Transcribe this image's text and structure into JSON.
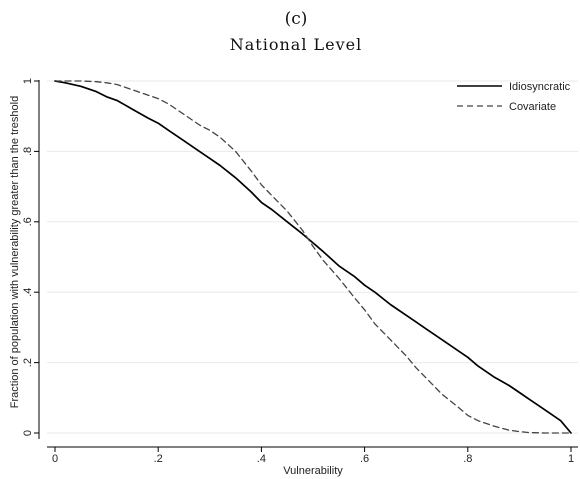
{
  "chart_data": {
    "type": "line",
    "panel_label": "(c)",
    "title": "National Level",
    "xlabel": "Vulnerability",
    "ylabel": "Fraction of population with vulnerability greater than the treshold",
    "xlim": [
      0,
      1
    ],
    "ylim": [
      0,
      1
    ],
    "x_ticks": [
      0,
      0.2,
      0.4,
      0.6,
      0.8,
      1
    ],
    "x_tick_labels": [
      "0",
      ".2",
      ".4",
      ".6",
      ".8",
      "1"
    ],
    "y_ticks": [
      0,
      0.2,
      0.4,
      0.6,
      0.8,
      1
    ],
    "y_tick_labels": [
      "0",
      ".2",
      ".4",
      ".6",
      ".8",
      "1"
    ],
    "grid": true,
    "legend_position": "top-right",
    "series": [
      {
        "name": "Idiosyncratic",
        "style": "solid",
        "color": "#000000",
        "x": [
          0,
          0.02,
          0.05,
          0.08,
          0.1,
          0.12,
          0.15,
          0.18,
          0.2,
          0.22,
          0.25,
          0.28,
          0.3,
          0.32,
          0.35,
          0.38,
          0.4,
          0.42,
          0.45,
          0.48,
          0.5,
          0.52,
          0.55,
          0.58,
          0.6,
          0.62,
          0.65,
          0.68,
          0.7,
          0.72,
          0.75,
          0.78,
          0.8,
          0.82,
          0.85,
          0.88,
          0.9,
          0.92,
          0.95,
          0.98,
          1
        ],
        "y": [
          1,
          0.995,
          0.985,
          0.97,
          0.955,
          0.945,
          0.92,
          0.895,
          0.88,
          0.86,
          0.83,
          0.8,
          0.78,
          0.76,
          0.725,
          0.685,
          0.655,
          0.635,
          0.6,
          0.565,
          0.54,
          0.515,
          0.475,
          0.445,
          0.42,
          0.4,
          0.365,
          0.335,
          0.315,
          0.295,
          0.265,
          0.235,
          0.215,
          0.19,
          0.16,
          0.135,
          0.115,
          0.095,
          0.065,
          0.035,
          0
        ]
      },
      {
        "name": "Covariate",
        "style": "dashed",
        "color": "#444444",
        "x": [
          0,
          0.02,
          0.05,
          0.08,
          0.1,
          0.12,
          0.15,
          0.18,
          0.2,
          0.22,
          0.25,
          0.28,
          0.3,
          0.32,
          0.35,
          0.38,
          0.4,
          0.42,
          0.45,
          0.48,
          0.5,
          0.52,
          0.55,
          0.58,
          0.6,
          0.62,
          0.65,
          0.68,
          0.7,
          0.72,
          0.75,
          0.78,
          0.8,
          0.82,
          0.85,
          0.88,
          0.9,
          0.92,
          0.95,
          0.98,
          1
        ],
        "y": [
          1,
          1,
          1,
          0.998,
          0.995,
          0.99,
          0.975,
          0.96,
          0.95,
          0.935,
          0.905,
          0.875,
          0.86,
          0.84,
          0.8,
          0.745,
          0.705,
          0.675,
          0.63,
          0.575,
          0.53,
          0.49,
          0.44,
          0.385,
          0.35,
          0.31,
          0.265,
          0.22,
          0.185,
          0.155,
          0.11,
          0.075,
          0.05,
          0.035,
          0.02,
          0.008,
          0.004,
          0.001,
          0,
          0,
          0
        ]
      }
    ]
  }
}
